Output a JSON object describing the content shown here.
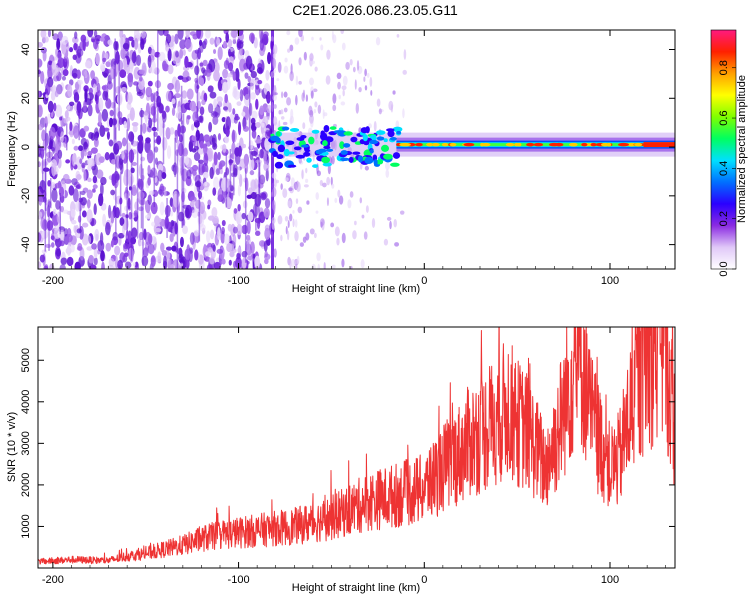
{
  "figure": {
    "title": "C2E1.2026.086.23.05.G11"
  },
  "chart_data": [
    {
      "type": "heatmap",
      "title": "",
      "xlabel": "Height of straight line (km)",
      "ylabel": "Frequency (Hz)",
      "xlim": [
        -208,
        135
      ],
      "ylim": [
        -50,
        48
      ],
      "xticks": [
        -200,
        -100,
        0,
        100
      ],
      "yticks": [
        -40,
        -20,
        0,
        20,
        40
      ],
      "colorbar": {
        "label": "Normalized spectral amplitude",
        "range": [
          0,
          0.95
        ],
        "ticks": [
          0.0,
          0.2,
          0.4,
          0.6,
          0.8
        ],
        "colormap": [
          "#ffffff",
          "#e0c8f8",
          "#8a2be2",
          "#2a00ff",
          "#0070ff",
          "#00e0ff",
          "#00ff60",
          "#80ff00",
          "#ffff00",
          "#ffa000",
          "#ff2000",
          "#ff1a80"
        ]
      },
      "features": [
        {
          "name": "broadband noise",
          "x_range": [
            -208,
            -82
          ],
          "amplitude": 0.05
        },
        {
          "name": "scattered noise",
          "x_range": [
            -82,
            -10
          ],
          "amplitude": 0.03
        },
        {
          "name": "signal band",
          "x_range": [
            -82,
            135
          ],
          "frequency_hz": 1,
          "amplitude": 0.9
        }
      ]
    },
    {
      "type": "line",
      "title": "",
      "xlabel": "Height of straight line (km)",
      "ylabel": "SNR (10 * v/v)",
      "xlim": [
        -208,
        135
      ],
      "ylim": [
        0,
        5800
      ],
      "xticks": [
        -200,
        -100,
        0,
        100
      ],
      "yticks": [
        1000,
        2000,
        3000,
        4000,
        5000
      ],
      "color": "#ee3333",
      "series": [
        {
          "x": [
            -208,
            -190,
            -170,
            -160,
            -150,
            -140,
            -130,
            -120,
            -110,
            -100,
            -90,
            -80,
            -70,
            -60,
            -50,
            -40,
            -30,
            -20,
            -10,
            0,
            10,
            20,
            25,
            30,
            40,
            45,
            50,
            55,
            60,
            65,
            70,
            75,
            80,
            85,
            90,
            95,
            100,
            105,
            110,
            115,
            120,
            125,
            130,
            135
          ],
          "values": [
            150,
            200,
            180,
            280,
            350,
            450,
            550,
            700,
            800,
            850,
            900,
            950,
            1000,
            1100,
            1200,
            1400,
            1600,
            1700,
            1800,
            1900,
            2400,
            2800,
            3100,
            3200,
            3600,
            3900,
            3500,
            3300,
            2900,
            2400,
            3000,
            3800,
            4800,
            5000,
            3600,
            3000,
            2400,
            2600,
            3600,
            4500,
            5000,
            5400,
            5200,
            3300
          ]
        }
      ]
    }
  ]
}
